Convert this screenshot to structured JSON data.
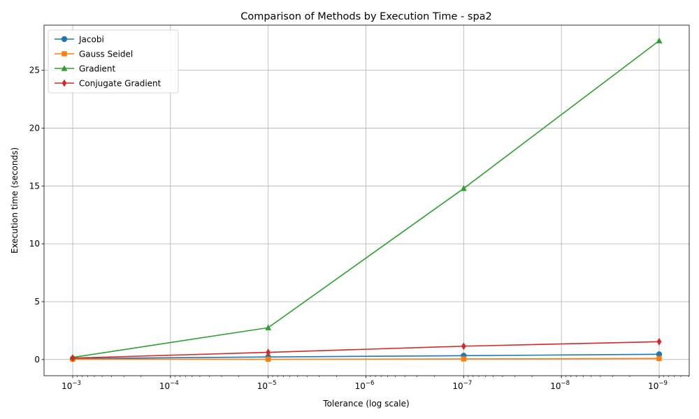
{
  "chart_data": {
    "type": "line",
    "title": "Comparison of Methods by Execution Time - spa2",
    "xlabel": "Tolerance (log scale)",
    "ylabel": "Execution time (seconds)",
    "x_scale": "log",
    "x_reversed": true,
    "x": [
      0.001,
      1e-05,
      1e-07,
      1e-09
    ],
    "x_ticks": [
      {
        "value": 0.001,
        "base": "10",
        "exp": "−3"
      },
      {
        "value": 0.0001,
        "base": "10",
        "exp": "−4"
      },
      {
        "value": 1e-05,
        "base": "10",
        "exp": "−5"
      },
      {
        "value": 1e-06,
        "base": "10",
        "exp": "−6"
      },
      {
        "value": 1e-07,
        "base": "10",
        "exp": "−7"
      },
      {
        "value": 1e-08,
        "base": "10",
        "exp": "−8"
      },
      {
        "value": 1e-09,
        "base": "10",
        "exp": "−9"
      }
    ],
    "y_ticks": [
      "0",
      "5",
      "10",
      "15",
      "20",
      "25"
    ],
    "ylim": [
      -1.4,
      28.9
    ],
    "grid": true,
    "legend_position": "top-left",
    "series": [
      {
        "name": "Jacobi",
        "color": "#1f77b4",
        "marker": "circle",
        "values": [
          0.08,
          0.22,
          0.33,
          0.45
        ]
      },
      {
        "name": "Gauss Seidel",
        "color": "#ff7f0e",
        "marker": "square",
        "values": [
          0.03,
          0.02,
          0.05,
          0.09
        ]
      },
      {
        "name": "Gradient",
        "color": "#2ca02c",
        "marker": "triangle",
        "values": [
          0.18,
          2.75,
          14.78,
          27.55
        ]
      },
      {
        "name": "Conjugate Gradient",
        "color": "#d62728",
        "marker": "diamond",
        "values": [
          0.12,
          0.62,
          1.15,
          1.54
        ]
      }
    ]
  }
}
